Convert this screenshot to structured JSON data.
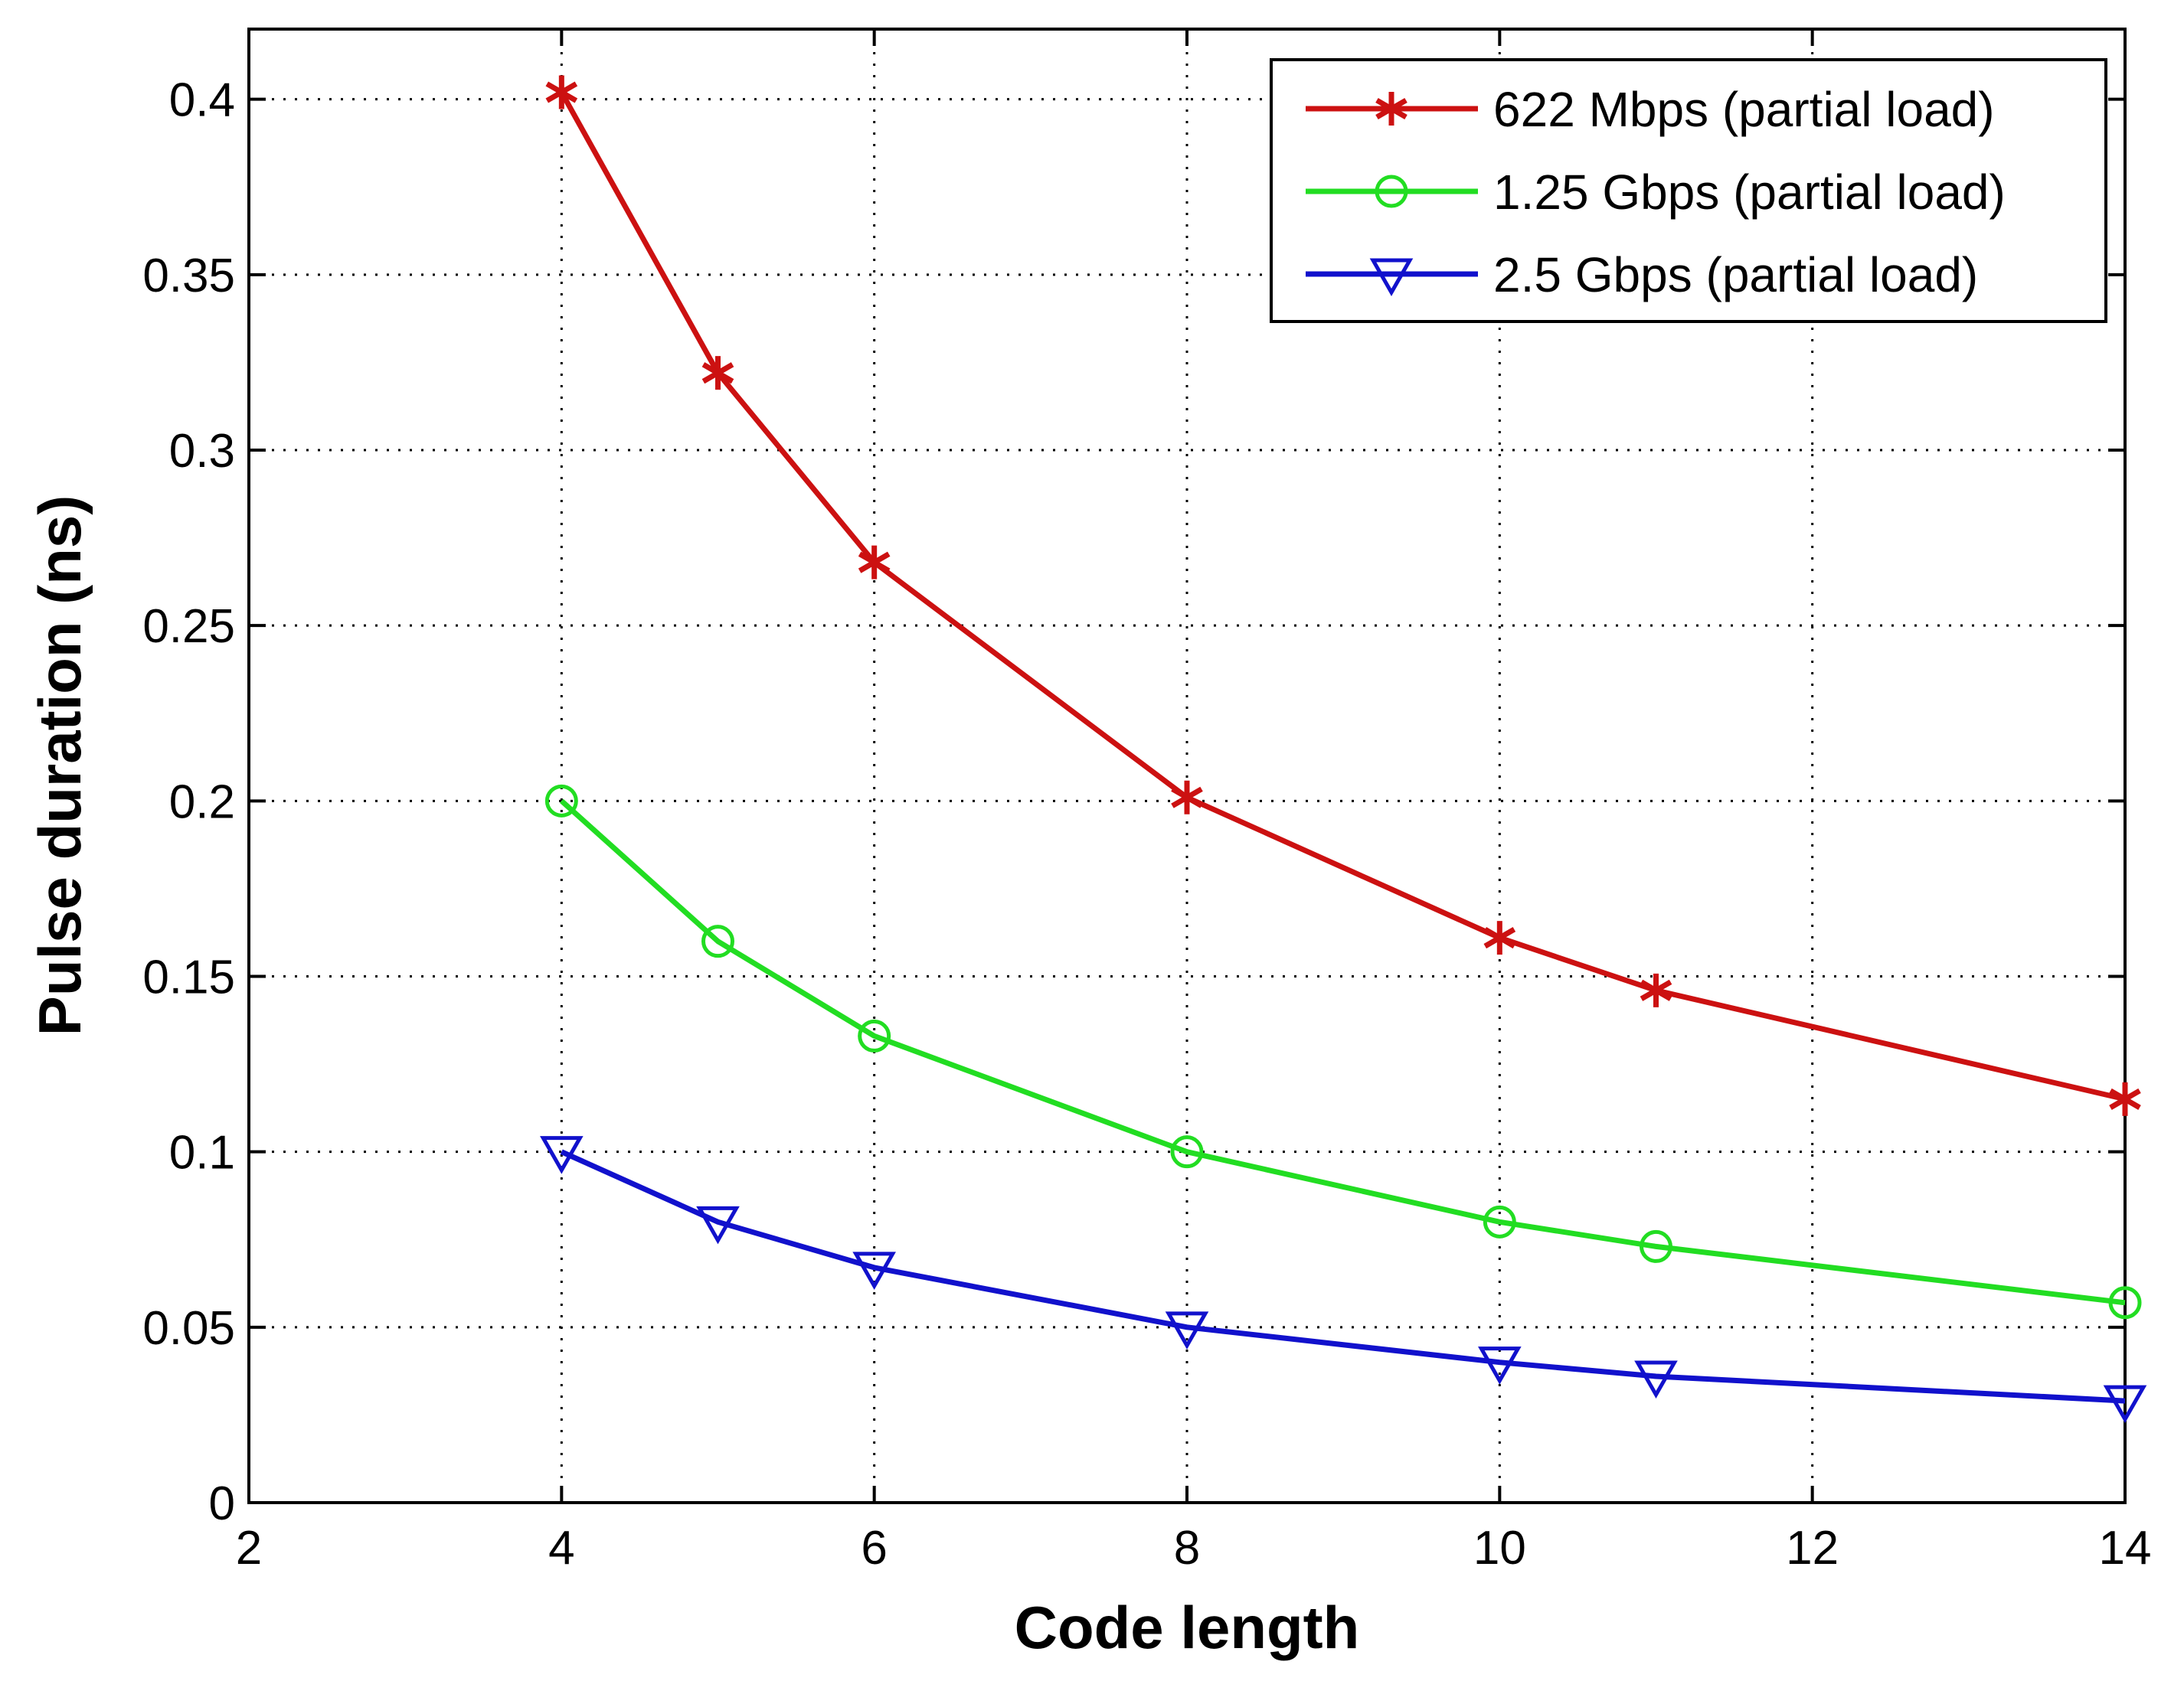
{
  "chart_data": {
    "type": "line",
    "title": "",
    "xlabel": "Code length",
    "ylabel": "Pulse duration (ns)",
    "xlim": [
      2,
      14
    ],
    "ylim": [
      0,
      0.42
    ],
    "xticks": [
      2,
      4,
      6,
      8,
      10,
      12,
      14
    ],
    "yticks": [
      0,
      0.05,
      0.1,
      0.15,
      0.2,
      0.25,
      0.3,
      0.35,
      0.4
    ],
    "xtick_labels": [
      "2",
      "4",
      "6",
      "8",
      "10",
      "12",
      "14"
    ],
    "ytick_labels": [
      "0",
      "0.05",
      "0.1",
      "0.15",
      "0.2",
      "0.25",
      "0.3",
      "0.35",
      "0.4"
    ],
    "grid": true,
    "legend_position": "top-right",
    "series": [
      {
        "name": "622 Mbps (partial load)",
        "color": "#cc1111",
        "marker": "star",
        "x": [
          4,
          5,
          6,
          8,
          10,
          11,
          14
        ],
        "y": [
          0.402,
          0.322,
          0.268,
          0.201,
          0.161,
          0.146,
          0.115
        ]
      },
      {
        "name": "1.25 Gbps (partial load)",
        "color": "#22dd22",
        "marker": "circle",
        "x": [
          4,
          5,
          6,
          8,
          10,
          11,
          14
        ],
        "y": [
          0.2,
          0.16,
          0.133,
          0.1,
          0.08,
          0.073,
          0.057
        ]
      },
      {
        "name": "2.5 Gbps (partial load)",
        "color": "#1111cc",
        "marker": "triangle-down",
        "x": [
          4,
          5,
          6,
          8,
          10,
          11,
          14
        ],
        "y": [
          0.1,
          0.08,
          0.067,
          0.05,
          0.04,
          0.036,
          0.029
        ]
      }
    ]
  }
}
